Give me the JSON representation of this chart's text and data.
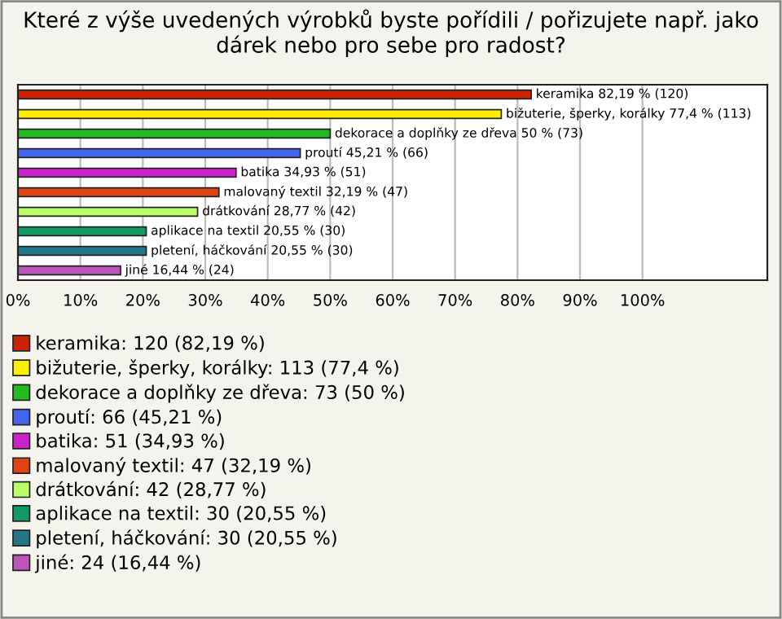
{
  "chart_data": {
    "type": "bar",
    "orientation": "horizontal",
    "title": "Které z výše uvedených výrobků byste pořídili / pořizujete např. jako dárek nebo pro sebe pro radost?",
    "categories": [
      null,
      null,
      null,
      null,
      null,
      null,
      null,
      null,
      null,
      null
    ],
    "series": [
      {
        "name": "keramika: 120 (82,19 %)",
        "color": "#cc2200",
        "values": [
          82.19,
          null,
          null,
          null,
          null,
          null,
          null,
          null,
          null,
          null
        ],
        "value_labels": [
          "keramika 82,19 % (120)",
          null,
          null,
          null,
          null,
          null,
          null,
          null,
          null,
          null
        ]
      },
      {
        "name": "bižuterie, šperky, korálky: 113 (77,4 %)",
        "color": "#ffee00",
        "values": [
          null,
          77.4,
          null,
          null,
          null,
          null,
          null,
          null,
          null,
          null
        ],
        "value_labels": [
          null,
          "bižuterie, šperky, korálky 77,4 % (113)",
          null,
          null,
          null,
          null,
          null,
          null,
          null,
          null
        ]
      },
      {
        "name": "dekorace a doplňky ze dřeva: 73 (50 %)",
        "color": "#22bb22",
        "values": [
          null,
          null,
          50,
          null,
          null,
          null,
          null,
          null,
          null,
          null
        ],
        "value_labels": [
          null,
          null,
          "dekorace a doplňky ze dřeva 50 % (73)",
          null,
          null,
          null,
          null,
          null,
          null,
          null
        ]
      },
      {
        "name": "proutí: 66 (45,21 %)",
        "color": "#4466ee",
        "values": [
          null,
          null,
          null,
          45.21,
          null,
          null,
          null,
          null,
          null,
          null
        ],
        "value_labels": [
          null,
          null,
          null,
          "proutí 45,21 % (66)",
          null,
          null,
          null,
          null,
          null,
          null
        ]
      },
      {
        "name": "batika: 51 (34,93 %)",
        "color": "#cc22cc",
        "values": [
          null,
          null,
          null,
          null,
          34.93,
          null,
          null,
          null,
          null,
          null
        ],
        "value_labels": [
          null,
          null,
          null,
          null,
          "batika 34,93 % (51)",
          null,
          null,
          null,
          null,
          null
        ]
      },
      {
        "name": "malovaný textil: 47 (32,19 %)",
        "color": "#dd4411",
        "values": [
          null,
          null,
          null,
          null,
          null,
          32.19,
          null,
          null,
          null,
          null
        ],
        "value_labels": [
          null,
          null,
          null,
          null,
          null,
          "malovaný textil 32,19 % (47)",
          null,
          null,
          null,
          null
        ]
      },
      {
        "name": "drátkování: 42 (28,77 %)",
        "color": "#bbff66",
        "values": [
          null,
          null,
          null,
          null,
          null,
          null,
          28.77,
          null,
          null,
          null
        ],
        "value_labels": [
          null,
          null,
          null,
          null,
          null,
          null,
          "drátkování 28,77 % (42)",
          null,
          null,
          null
        ]
      },
      {
        "name": "aplikace na textil: 30 (20,55 %)",
        "color": "#119966",
        "values": [
          null,
          null,
          null,
          null,
          null,
          null,
          null,
          20.55,
          null,
          null
        ],
        "value_labels": [
          null,
          null,
          null,
          null,
          null,
          null,
          null,
          "aplikace na textil 20,55 % (30)",
          null,
          null
        ]
      },
      {
        "name": "pletení, háčkování: 30 (20,55 %)",
        "color": "#227788",
        "values": [
          null,
          null,
          null,
          null,
          null,
          null,
          null,
          null,
          20.55,
          null
        ],
        "value_labels": [
          null,
          null,
          null,
          null,
          null,
          null,
          null,
          null,
          "pletení, háčkování 20,55 % (30)",
          null
        ]
      },
      {
        "name": "jiné: 24 (16,44 %)",
        "color": "#bb55bb",
        "values": [
          null,
          null,
          null,
          null,
          null,
          null,
          null,
          null,
          null,
          16.44
        ],
        "value_labels": [
          null,
          null,
          null,
          null,
          null,
          null,
          null,
          null,
          null,
          "jiné 16,44 % (24)"
        ]
      }
    ],
    "xlim": [
      0,
      120
    ],
    "xticks": [
      {
        "value": 0,
        "label": "0%"
      },
      {
        "value": 10,
        "label": "10%"
      },
      {
        "value": 20,
        "label": "20%"
      },
      {
        "value": 30,
        "label": "30%"
      },
      {
        "value": 40,
        "label": "40%"
      },
      {
        "value": 50,
        "label": "50%"
      },
      {
        "value": 60,
        "label": "60%"
      },
      {
        "value": 70,
        "label": "70%"
      },
      {
        "value": 80,
        "label": "80%"
      },
      {
        "value": 90,
        "label": "90%"
      },
      {
        "value": 100,
        "label": "100%"
      }
    ],
    "grid": "x",
    "legend": "bottom",
    "tick_labels": "x"
  }
}
